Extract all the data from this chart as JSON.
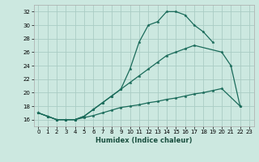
{
  "xlabel": "Humidex (Indice chaleur)",
  "background_color": "#cce8e0",
  "grid_color": "#aaccc4",
  "line_color": "#1a6b5a",
  "xlim": [
    -0.5,
    23.5
  ],
  "ylim": [
    15.0,
    33.0
  ],
  "xticks": [
    0,
    1,
    2,
    3,
    4,
    5,
    6,
    7,
    8,
    9,
    10,
    11,
    12,
    13,
    14,
    15,
    16,
    17,
    18,
    19,
    20,
    21,
    22,
    23
  ],
  "yticks": [
    16,
    18,
    20,
    22,
    24,
    26,
    28,
    30,
    32
  ],
  "line1_x": [
    0,
    1,
    2,
    3,
    4,
    5,
    6,
    7,
    8,
    9,
    10,
    11,
    12,
    13,
    14,
    15,
    16,
    17,
    18,
    19
  ],
  "line1_y": [
    17.0,
    16.5,
    16.0,
    16.0,
    16.0,
    16.5,
    17.5,
    18.5,
    19.5,
    20.5,
    23.5,
    27.5,
    30.0,
    30.5,
    32.0,
    32.0,
    31.5,
    30.0,
    29.0,
    27.5
  ],
  "line2_x": [
    0,
    1,
    2,
    3,
    4,
    5,
    6,
    7,
    8,
    9,
    10,
    11,
    12,
    13,
    14,
    15,
    16,
    17,
    20,
    21,
    22
  ],
  "line2_y": [
    17.0,
    16.5,
    16.0,
    16.0,
    16.0,
    16.5,
    17.5,
    18.5,
    19.5,
    20.5,
    21.5,
    22.5,
    23.5,
    24.5,
    25.5,
    26.0,
    26.5,
    27.0,
    26.0,
    24.0,
    18.0
  ],
  "line3_x": [
    0,
    1,
    2,
    3,
    4,
    5,
    6,
    7,
    8,
    9,
    10,
    11,
    12,
    13,
    14,
    15,
    16,
    17,
    18,
    19,
    20,
    22
  ],
  "line3_y": [
    17.0,
    16.5,
    16.0,
    16.0,
    16.0,
    16.3,
    16.6,
    17.0,
    17.4,
    17.8,
    18.0,
    18.2,
    18.5,
    18.7,
    19.0,
    19.2,
    19.5,
    19.8,
    20.0,
    20.3,
    20.6,
    18.0
  ],
  "figwidth": 3.2,
  "figheight": 2.0,
  "dpi": 100
}
